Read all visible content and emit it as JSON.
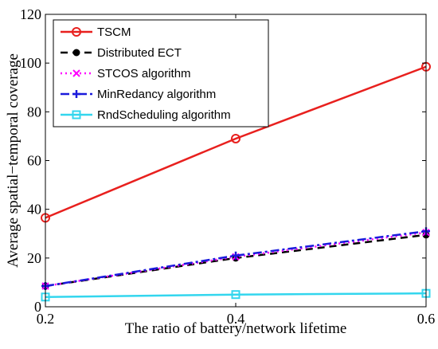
{
  "chart_data": {
    "type": "line",
    "title": "",
    "xlabel": "The ratio of battery/network lifetime",
    "ylabel": "Average spatial−temporal coverage",
    "xlim": [
      0.2,
      0.6
    ],
    "ylim": [
      0,
      120
    ],
    "xticks": [
      "0.2",
      "0.4",
      "0.6"
    ],
    "yticks": [
      "0",
      "20",
      "40",
      "60",
      "80",
      "100",
      "120"
    ],
    "grid": false,
    "legend_position": "top-left",
    "x": [
      0.2,
      0.4,
      0.6
    ],
    "series": [
      {
        "name": "TSCM",
        "values": [
          36.5,
          69,
          98.5
        ],
        "color": "#e8201e",
        "dash": "solid",
        "marker": "circle"
      },
      {
        "name": "Distributed ECT",
        "values": [
          8.5,
          20,
          29.5
        ],
        "color": "#000000",
        "dash": "dashed",
        "marker": "dot"
      },
      {
        "name": "STCOS algorithm",
        "values": [
          8.5,
          20.5,
          30.5
        ],
        "color": "#ff00ff",
        "dash": "dotted",
        "marker": "x"
      },
      {
        "name": "MinRedancy algorithm",
        "values": [
          8.5,
          21,
          31
        ],
        "color": "#1a1adc",
        "dash": "dashdot",
        "marker": "plus"
      },
      {
        "name": "RndScheduling algorithm",
        "values": [
          4,
          5,
          5.5
        ],
        "color": "#33d6ee",
        "dash": "solid",
        "marker": "square"
      }
    ]
  }
}
